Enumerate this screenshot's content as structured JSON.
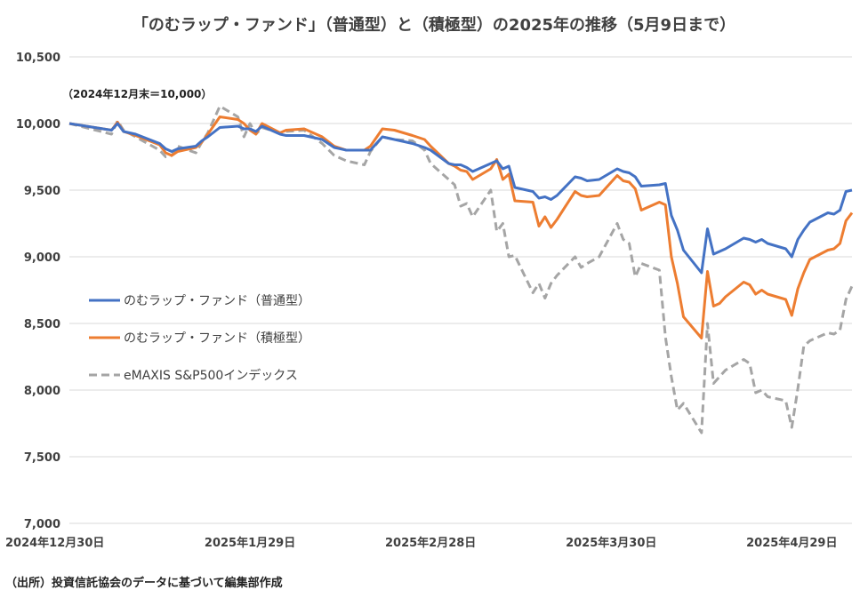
{
  "chart_data": {
    "type": "line",
    "title": "「のむラップ・ファンド」（普通型）と（積極型）の2025年の推移（5月9日まで）",
    "annotation": "（2024年12月末＝10,000）",
    "source": "（出所）投資信託協会のデータに基づいて編集部作成",
    "ylim": [
      7000,
      10500
    ],
    "yticks": [
      7000,
      7500,
      8000,
      8500,
      9000,
      9500,
      10000,
      10500
    ],
    "ytick_labels": [
      "7,000",
      "7,500",
      "8,000",
      "8,500",
      "9,000",
      "9,500",
      "10,000",
      "10,500"
    ],
    "xlim": [
      "2024-12-30",
      "2025-05-09"
    ],
    "xticks": [
      "2024-12-30",
      "2025-01-29",
      "2025-02-28",
      "2025-03-30",
      "2025-04-29"
    ],
    "xtick_labels": [
      "2024年12月30日",
      "2025年1月29日",
      "2025年2月28日",
      "2025年3月30日",
      "2025年4月29日"
    ],
    "grid": "horizontal",
    "legend_position": "center-left",
    "series": [
      {
        "name": "のむラップ・ファンド（普通型）",
        "color": "#4472C4",
        "style": "solid",
        "points": [
          [
            "2024-12-30",
            10000
          ],
          [
            "2025-01-06",
            9950
          ],
          [
            "2025-01-07",
            10000
          ],
          [
            "2025-01-08",
            9940
          ],
          [
            "2025-01-10",
            9920
          ],
          [
            "2025-01-14",
            9850
          ],
          [
            "2025-01-15",
            9810
          ],
          [
            "2025-01-16",
            9790
          ],
          [
            "2025-01-17",
            9810
          ],
          [
            "2025-01-20",
            9830
          ],
          [
            "2025-01-21",
            9870
          ],
          [
            "2025-01-22",
            9900
          ],
          [
            "2025-01-24",
            9970
          ],
          [
            "2025-01-27",
            9980
          ],
          [
            "2025-01-28",
            9960
          ],
          [
            "2025-01-29",
            9960
          ],
          [
            "2025-01-30",
            9940
          ],
          [
            "2025-01-31",
            9980
          ],
          [
            "2025-02-03",
            9920
          ],
          [
            "2025-02-04",
            9910
          ],
          [
            "2025-02-07",
            9910
          ],
          [
            "2025-02-10",
            9880
          ],
          [
            "2025-02-12",
            9820
          ],
          [
            "2025-02-14",
            9800
          ],
          [
            "2025-02-17",
            9800
          ],
          [
            "2025-02-18",
            9800
          ],
          [
            "2025-02-20",
            9900
          ],
          [
            "2025-02-22",
            9880
          ],
          [
            "2025-02-25",
            9850
          ],
          [
            "2025-02-27",
            9820
          ],
          [
            "2025-02-28",
            9800
          ],
          [
            "2025-03-03",
            9700
          ],
          [
            "2025-03-04",
            9690
          ],
          [
            "2025-03-05",
            9690
          ],
          [
            "2025-03-06",
            9670
          ],
          [
            "2025-03-07",
            9640
          ],
          [
            "2025-03-10",
            9700
          ],
          [
            "2025-03-11",
            9720
          ],
          [
            "2025-03-12",
            9660
          ],
          [
            "2025-03-13",
            9680
          ],
          [
            "2025-03-14",
            9520
          ],
          [
            "2025-03-17",
            9490
          ],
          [
            "2025-03-18",
            9440
          ],
          [
            "2025-03-19",
            9450
          ],
          [
            "2025-03-20",
            9430
          ],
          [
            "2025-03-21",
            9460
          ],
          [
            "2025-03-24",
            9600
          ],
          [
            "2025-03-25",
            9590
          ],
          [
            "2025-03-26",
            9570
          ],
          [
            "2025-03-28",
            9580
          ],
          [
            "2025-03-31",
            9660
          ],
          [
            "2025-04-01",
            9640
          ],
          [
            "2025-04-02",
            9630
          ],
          [
            "2025-04-03",
            9600
          ],
          [
            "2025-04-04",
            9530
          ],
          [
            "2025-04-07",
            9540
          ],
          [
            "2025-04-08",
            9550
          ],
          [
            "2025-04-09",
            9310
          ],
          [
            "2025-04-10",
            9200
          ],
          [
            "2025-04-11",
            9050
          ],
          [
            "2025-04-14",
            8880
          ],
          [
            "2025-04-15",
            9210
          ],
          [
            "2025-04-16",
            9020
          ],
          [
            "2025-04-17",
            9040
          ],
          [
            "2025-04-18",
            9060
          ],
          [
            "2025-04-21",
            9140
          ],
          [
            "2025-04-22",
            9130
          ],
          [
            "2025-04-23",
            9110
          ],
          [
            "2025-04-24",
            9130
          ],
          [
            "2025-04-25",
            9100
          ],
          [
            "2025-04-28",
            9060
          ],
          [
            "2025-04-29",
            9000
          ],
          [
            "2025-04-30",
            9130
          ],
          [
            "2025-05-01",
            9200
          ],
          [
            "2025-05-02",
            9260
          ],
          [
            "2025-05-05",
            9330
          ],
          [
            "2025-05-06",
            9320
          ],
          [
            "2025-05-07",
            9350
          ],
          [
            "2025-05-08",
            9490
          ],
          [
            "2025-05-09",
            9500
          ]
        ]
      },
      {
        "name": "のむラップ・ファンド（積極型）",
        "color": "#ED7D31",
        "style": "solid",
        "points": [
          [
            "2024-12-30",
            10000
          ],
          [
            "2025-01-06",
            9950
          ],
          [
            "2025-01-07",
            10010
          ],
          [
            "2025-01-08",
            9940
          ],
          [
            "2025-01-10",
            9910
          ],
          [
            "2025-01-14",
            9840
          ],
          [
            "2025-01-15",
            9780
          ],
          [
            "2025-01-16",
            9760
          ],
          [
            "2025-01-17",
            9790
          ],
          [
            "2025-01-20",
            9820
          ],
          [
            "2025-01-21",
            9860
          ],
          [
            "2025-01-22",
            9920
          ],
          [
            "2025-01-24",
            10050
          ],
          [
            "2025-01-27",
            10030
          ],
          [
            "2025-01-28",
            10000
          ],
          [
            "2025-01-29",
            9950
          ],
          [
            "2025-01-30",
            9920
          ],
          [
            "2025-01-31",
            10000
          ],
          [
            "2025-02-03",
            9930
          ],
          [
            "2025-02-04",
            9950
          ],
          [
            "2025-02-07",
            9960
          ],
          [
            "2025-02-10",
            9900
          ],
          [
            "2025-02-12",
            9830
          ],
          [
            "2025-02-14",
            9800
          ],
          [
            "2025-02-17",
            9800
          ],
          [
            "2025-02-18",
            9830
          ],
          [
            "2025-02-20",
            9960
          ],
          [
            "2025-02-22",
            9950
          ],
          [
            "2025-02-25",
            9910
          ],
          [
            "2025-02-27",
            9880
          ],
          [
            "2025-02-28",
            9830
          ],
          [
            "2025-03-03",
            9700
          ],
          [
            "2025-03-04",
            9680
          ],
          [
            "2025-03-05",
            9650
          ],
          [
            "2025-03-06",
            9640
          ],
          [
            "2025-03-07",
            9580
          ],
          [
            "2025-03-10",
            9660
          ],
          [
            "2025-03-11",
            9730
          ],
          [
            "2025-03-12",
            9580
          ],
          [
            "2025-03-13",
            9620
          ],
          [
            "2025-03-14",
            9420
          ],
          [
            "2025-03-17",
            9410
          ],
          [
            "2025-03-18",
            9230
          ],
          [
            "2025-03-19",
            9300
          ],
          [
            "2025-03-20",
            9220
          ],
          [
            "2025-03-21",
            9280
          ],
          [
            "2025-03-24",
            9490
          ],
          [
            "2025-03-25",
            9460
          ],
          [
            "2025-03-26",
            9450
          ],
          [
            "2025-03-28",
            9460
          ],
          [
            "2025-03-31",
            9610
          ],
          [
            "2025-04-01",
            9570
          ],
          [
            "2025-04-02",
            9560
          ],
          [
            "2025-04-03",
            9510
          ],
          [
            "2025-04-04",
            9350
          ],
          [
            "2025-04-07",
            9410
          ],
          [
            "2025-04-08",
            9390
          ],
          [
            "2025-04-09",
            9000
          ],
          [
            "2025-04-10",
            8800
          ],
          [
            "2025-04-11",
            8550
          ],
          [
            "2025-04-14",
            8390
          ],
          [
            "2025-04-15",
            8890
          ],
          [
            "2025-04-16",
            8630
          ],
          [
            "2025-04-17",
            8650
          ],
          [
            "2025-04-18",
            8700
          ],
          [
            "2025-04-21",
            8810
          ],
          [
            "2025-04-22",
            8790
          ],
          [
            "2025-04-23",
            8720
          ],
          [
            "2025-04-24",
            8750
          ],
          [
            "2025-04-25",
            8720
          ],
          [
            "2025-04-28",
            8680
          ],
          [
            "2025-04-29",
            8560
          ],
          [
            "2025-04-30",
            8760
          ],
          [
            "2025-05-01",
            8880
          ],
          [
            "2025-05-02",
            8980
          ],
          [
            "2025-05-05",
            9050
          ],
          [
            "2025-05-06",
            9060
          ],
          [
            "2025-05-07",
            9100
          ],
          [
            "2025-05-08",
            9270
          ],
          [
            "2025-05-09",
            9330
          ]
        ]
      },
      {
        "name": "eMAXIS S&P500インデックス",
        "color": "#A5A5A5",
        "style": "dashed",
        "points": [
          [
            "2024-12-30",
            10000
          ],
          [
            "2025-01-06",
            9920
          ],
          [
            "2025-01-07",
            10020
          ],
          [
            "2025-01-08",
            9950
          ],
          [
            "2025-01-10",
            9900
          ],
          [
            "2025-01-14",
            9800
          ],
          [
            "2025-01-15",
            9750
          ],
          [
            "2025-01-16",
            9760
          ],
          [
            "2025-01-17",
            9830
          ],
          [
            "2025-01-20",
            9780
          ],
          [
            "2025-01-21",
            9860
          ],
          [
            "2025-01-22",
            9930
          ],
          [
            "2025-01-24",
            10130
          ],
          [
            "2025-01-27",
            10050
          ],
          [
            "2025-01-28",
            9900
          ],
          [
            "2025-01-29",
            10000
          ],
          [
            "2025-01-30",
            9920
          ],
          [
            "2025-01-31",
            9970
          ],
          [
            "2025-02-03",
            9930
          ],
          [
            "2025-02-04",
            9940
          ],
          [
            "2025-02-07",
            9950
          ],
          [
            "2025-02-10",
            9850
          ],
          [
            "2025-02-12",
            9760
          ],
          [
            "2025-02-14",
            9720
          ],
          [
            "2025-02-17",
            9690
          ],
          [
            "2025-02-18",
            9790
          ],
          [
            "2025-02-20",
            9900
          ],
          [
            "2025-02-22",
            9880
          ],
          [
            "2025-02-25",
            9870
          ],
          [
            "2025-02-27",
            9800
          ],
          [
            "2025-02-28",
            9700
          ],
          [
            "2025-03-03",
            9580
          ],
          [
            "2025-03-04",
            9540
          ],
          [
            "2025-03-05",
            9380
          ],
          [
            "2025-03-06",
            9400
          ],
          [
            "2025-03-07",
            9300
          ],
          [
            "2025-03-10",
            9500
          ],
          [
            "2025-03-11",
            9190
          ],
          [
            "2025-03-12",
            9250
          ],
          [
            "2025-03-13",
            9000
          ],
          [
            "2025-03-14",
            9010
          ],
          [
            "2025-03-17",
            8730
          ],
          [
            "2025-03-18",
            8800
          ],
          [
            "2025-03-19",
            8690
          ],
          [
            "2025-03-20",
            8800
          ],
          [
            "2025-03-21",
            8860
          ],
          [
            "2025-03-24",
            9000
          ],
          [
            "2025-03-25",
            8920
          ],
          [
            "2025-03-26",
            8950
          ],
          [
            "2025-03-28",
            9000
          ],
          [
            "2025-03-31",
            9250
          ],
          [
            "2025-04-01",
            9130
          ],
          [
            "2025-04-02",
            9100
          ],
          [
            "2025-04-03",
            8850
          ],
          [
            "2025-04-04",
            8950
          ],
          [
            "2025-04-07",
            8900
          ],
          [
            "2025-04-08",
            8400
          ],
          [
            "2025-04-09",
            8100
          ],
          [
            "2025-04-10",
            7850
          ],
          [
            "2025-04-11",
            7900
          ],
          [
            "2025-04-14",
            7680
          ],
          [
            "2025-04-15",
            8500
          ],
          [
            "2025-04-16",
            8050
          ],
          [
            "2025-04-17",
            8100
          ],
          [
            "2025-04-18",
            8150
          ],
          [
            "2025-04-21",
            8230
          ],
          [
            "2025-04-22",
            8200
          ],
          [
            "2025-04-23",
            7980
          ],
          [
            "2025-04-24",
            8000
          ],
          [
            "2025-04-25",
            7950
          ],
          [
            "2025-04-28",
            7920
          ],
          [
            "2025-04-29",
            7720
          ],
          [
            "2025-04-30",
            8010
          ],
          [
            "2025-05-01",
            8330
          ],
          [
            "2025-05-02",
            8370
          ],
          [
            "2025-05-05",
            8430
          ],
          [
            "2025-05-06",
            8420
          ],
          [
            "2025-05-07",
            8450
          ],
          [
            "2025-05-08",
            8680
          ],
          [
            "2025-05-09",
            8780
          ]
        ]
      }
    ]
  }
}
